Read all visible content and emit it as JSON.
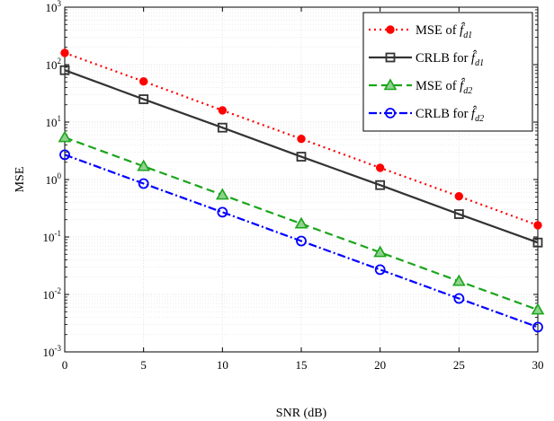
{
  "chart_data": {
    "type": "line",
    "title": "",
    "xlabel": "SNR (dB)",
    "ylabel": "MSE",
    "xscale": "linear",
    "yscale": "log",
    "xlim": [
      0,
      30
    ],
    "ylim": [
      0.001,
      1000
    ],
    "grid": true,
    "legend_position": "top-right",
    "x_ticks": [
      0,
      5,
      10,
      15,
      20,
      25,
      30
    ],
    "x_tick_labels": [
      "0",
      "5",
      "10",
      "15",
      "20",
      "25",
      "30"
    ],
    "y_ticks": [
      {
        "value": 0.001,
        "base": "10",
        "exp": "-3"
      },
      {
        "value": 0.01,
        "base": "10",
        "exp": "-2"
      },
      {
        "value": 0.1,
        "base": "10",
        "exp": "-1"
      },
      {
        "value": 1,
        "base": "10",
        "exp": "0"
      },
      {
        "value": 10,
        "base": "10",
        "exp": "1"
      },
      {
        "value": 100,
        "base": "10",
        "exp": "2"
      },
      {
        "value": 1000,
        "base": "10",
        "exp": "3"
      }
    ],
    "x": [
      0,
      5,
      10,
      15,
      20,
      25,
      30
    ],
    "series": [
      {
        "legend_main": "MSE of ",
        "legend_symbol": "f̂",
        "legend_sub": "d1",
        "values": [
          160,
          51,
          16,
          5.1,
          1.6,
          0.51,
          0.16
        ],
        "color": "#ff0000",
        "dash": "2,4",
        "marker": "dot"
      },
      {
        "legend_main": "CRLB for ",
        "legend_symbol": "f̂",
        "legend_sub": "d1",
        "values": [
          80,
          25,
          8,
          2.5,
          0.8,
          0.25,
          0.08
        ],
        "color": "#333333",
        "dash": "",
        "marker": "square"
      },
      {
        "legend_main": "MSE of ",
        "legend_symbol": "f̂",
        "legend_sub": "d2",
        "values": [
          5.4,
          1.7,
          0.54,
          0.17,
          0.054,
          0.017,
          0.0054
        ],
        "color": "#1aa51a",
        "dash": "9,5",
        "marker": "triangle"
      },
      {
        "legend_main": "CRLB for ",
        "legend_symbol": "f̂",
        "legend_sub": "d2",
        "values": [
          2.7,
          0.85,
          0.27,
          0.085,
          0.027,
          0.0085,
          0.0027
        ],
        "color": "#0000ff",
        "dash": "9,3,2,3",
        "marker": "circle"
      }
    ]
  }
}
